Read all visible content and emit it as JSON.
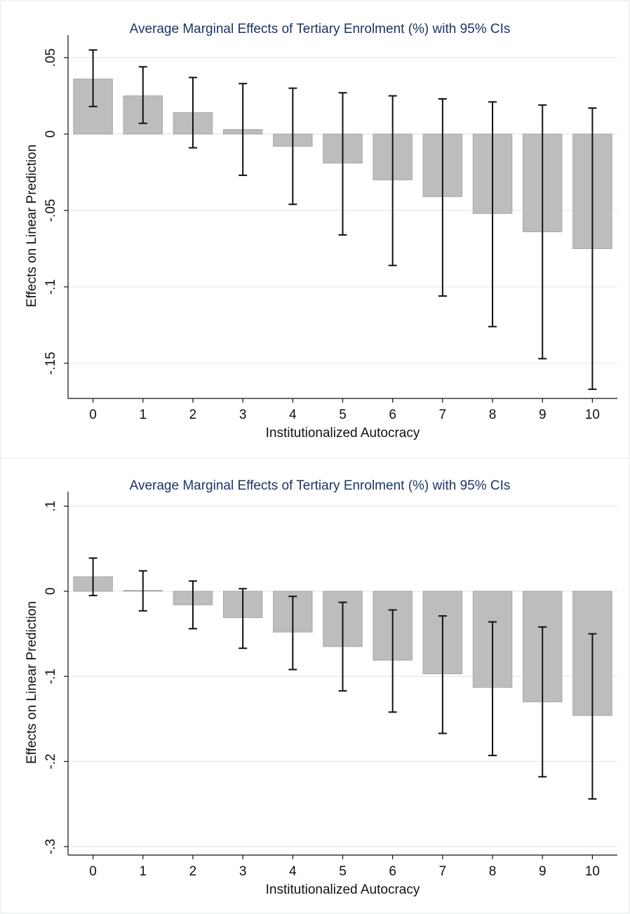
{
  "chart_data": [
    {
      "type": "bar",
      "title": "Average Marginal Effects of Tertiary Enrolment (%) with 95% CIs",
      "x_label": "Institutionalized Autocracy",
      "y_label": "Effects on Linear Prediction",
      "categories": [
        "0",
        "1",
        "2",
        "3",
        "4",
        "5",
        "6",
        "7",
        "8",
        "9",
        "10"
      ],
      "values": [
        0.036,
        0.025,
        0.014,
        0.003,
        -0.008,
        -0.019,
        -0.03,
        -0.041,
        -0.052,
        -0.064,
        -0.075
      ],
      "ci_high": [
        0.055,
        0.044,
        0.037,
        0.033,
        0.03,
        0.027,
        0.025,
        0.023,
        0.021,
        0.019,
        0.017
      ],
      "ci_low": [
        0.018,
        0.007,
        -0.009,
        -0.027,
        -0.046,
        -0.066,
        -0.086,
        -0.106,
        -0.126,
        -0.147,
        -0.167
      ],
      "color": "#bdbdbd",
      "ylim": [
        -0.173,
        0.062
      ],
      "yticks": [
        {
          "value": 0.05,
          "label": ".05"
        },
        0,
        {
          "value": -0.05,
          "label": "-.05"
        },
        {
          "value": -0.1,
          "label": "-.1"
        },
        {
          "value": -0.15,
          "label": "-.15"
        }
      ],
      "grid": true
    },
    {
      "type": "bar",
      "title": "Average Marginal Effects of Tertiary Enrolment (%) with 95% CIs",
      "x_label": "Institutionalized Autocracy",
      "y_label": "Effects on Linear Prediction",
      "categories": [
        "0",
        "1",
        "2",
        "3",
        "4",
        "5",
        "6",
        "7",
        "8",
        "9",
        "10"
      ],
      "values": [
        0.017,
        0.001,
        -0.016,
        -0.031,
        -0.048,
        -0.065,
        -0.081,
        -0.097,
        -0.113,
        -0.13,
        -0.146
      ],
      "ci_high": [
        0.039,
        0.024,
        0.012,
        0.003,
        -0.006,
        -0.013,
        -0.022,
        -0.029,
        -0.036,
        -0.042,
        -0.05
      ],
      "ci_low": [
        -0.005,
        -0.023,
        -0.044,
        -0.067,
        -0.092,
        -0.117,
        -0.142,
        -0.167,
        -0.193,
        -0.218,
        -0.244
      ],
      "color": "#bdbdbd",
      "ylim": [
        -0.31,
        0.112
      ],
      "yticks": [
        {
          "value": 0.1,
          "label": ".1"
        },
        0,
        {
          "value": -0.1,
          "label": "-.1"
        },
        {
          "value": -0.2,
          "label": "-.2"
        },
        {
          "value": -0.3,
          "label": "-.3"
        }
      ],
      "grid": true
    }
  ]
}
